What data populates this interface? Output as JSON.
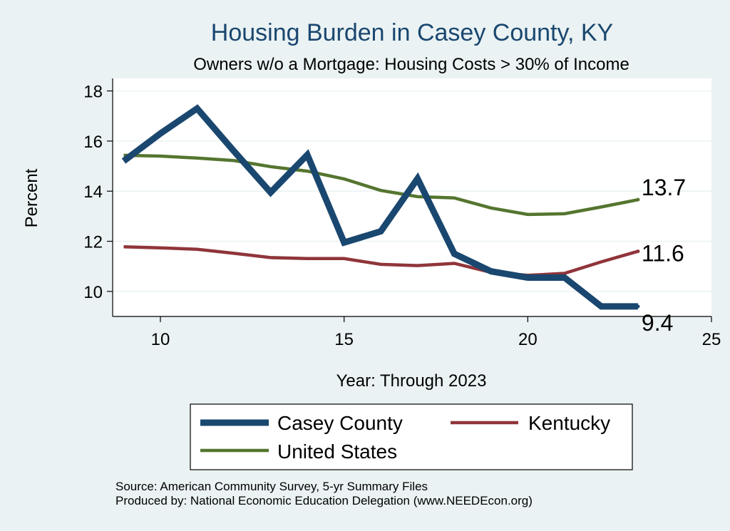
{
  "colors": {
    "background": "#eaf2f3",
    "plot_background": "#ffffff",
    "title": "#1a476f",
    "gridline": "#eaf2f3",
    "casey": "#1a476f",
    "kentucky": "#90353b",
    "us": "#55752f"
  },
  "chart_data": {
    "type": "line",
    "title": "Housing Burden in Casey County, KY",
    "subtitle": "Owners w/o a Mortgage: Housing Costs > 30% of Income",
    "xlabel": "Year: Through 2023",
    "ylabel": "Percent",
    "xlim": [
      8.7,
      25
    ],
    "ylim": [
      9.0,
      18.5
    ],
    "xticks": [
      10,
      15,
      20,
      25
    ],
    "yticks": [
      10,
      12,
      14,
      16,
      18
    ],
    "grid": true,
    "legend_position": "bottom",
    "series": [
      {
        "name": "Casey County",
        "color_key": "casey",
        "x": [
          9,
          10,
          11,
          12,
          13,
          14,
          15,
          16,
          17,
          18,
          19,
          20,
          21,
          22,
          23
        ],
        "y": [
          15.2,
          16.3,
          17.3,
          15.6,
          13.95,
          15.45,
          11.95,
          12.4,
          14.5,
          11.5,
          10.8,
          10.55,
          10.55,
          9.4,
          9.4
        ],
        "end_label": "9.4"
      },
      {
        "name": "Kentucky",
        "color_key": "kentucky",
        "x": [
          9,
          10,
          11,
          12,
          13,
          14,
          15,
          16,
          17,
          18,
          19,
          20,
          21,
          22,
          23
        ],
        "y": [
          11.78,
          11.74,
          11.68,
          11.52,
          11.35,
          11.31,
          11.31,
          11.08,
          11.03,
          11.12,
          10.76,
          10.64,
          10.72,
          11.18,
          11.6
        ],
        "end_label": "11.6"
      },
      {
        "name": "United States",
        "color_key": "us",
        "x": [
          9,
          10,
          11,
          12,
          13,
          14,
          15,
          16,
          17,
          18,
          19,
          20,
          21,
          22,
          23
        ],
        "y": [
          15.43,
          15.4,
          15.32,
          15.22,
          14.98,
          14.8,
          14.49,
          14.03,
          13.78,
          13.73,
          13.33,
          13.07,
          13.1,
          13.37,
          13.66
        ],
        "end_label": "13.7"
      }
    ],
    "source_note": "Source: American Community Survey, 5-yr Summary Files",
    "producer_note": "Produced by: National Economic Education Delegation (www.NEEDEcon.org)"
  }
}
